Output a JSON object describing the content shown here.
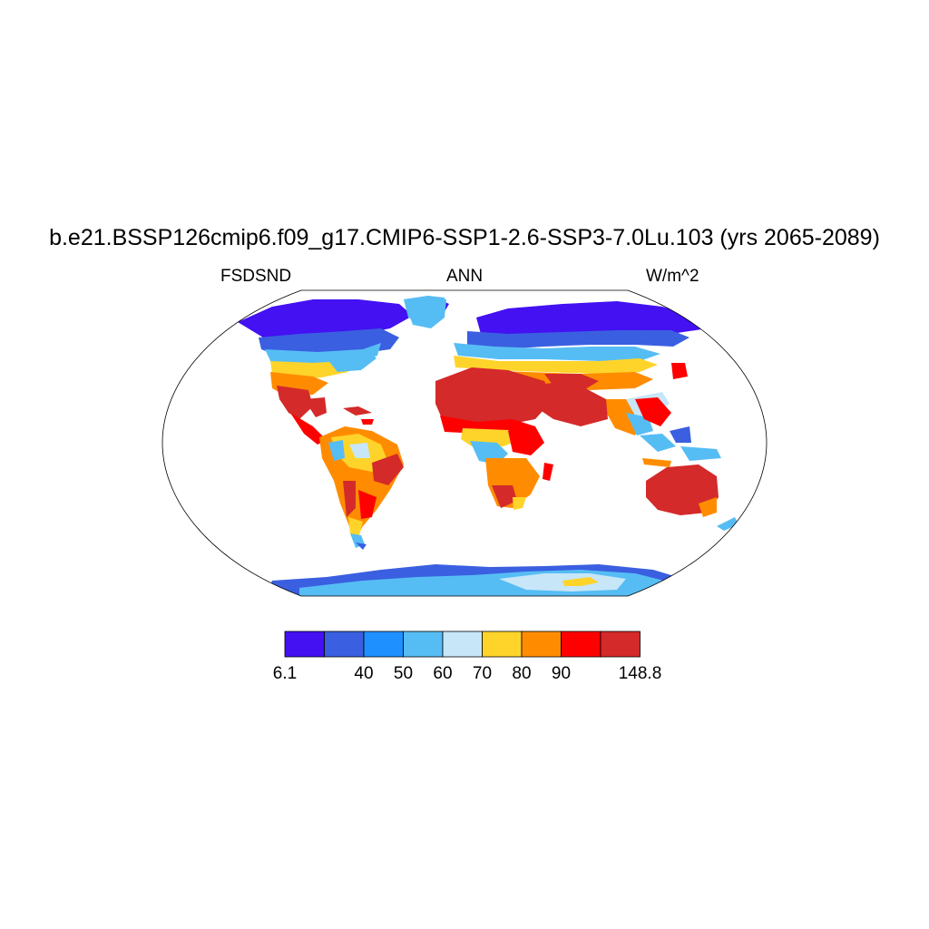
{
  "title": "b.e21.BSSP126cmip6.f09_g17.CMIP6-SSP1-2.6-SSP3-7.0Lu.103 (yrs 2065-2089)",
  "left_label": "FSDSND",
  "center_label": "ANN",
  "right_label": "W/m^2",
  "colorbar": {
    "colors": [
      "#4311f2",
      "#3a5fe0",
      "#1e90ff",
      "#56bdf4",
      "#c7e6f8",
      "#ffd42a",
      "#ff8c00",
      "#ff0000",
      "#d42a2a"
    ],
    "labels": [
      "6.1",
      "",
      "40",
      "50",
      "60",
      "70",
      "80",
      "90",
      "",
      "148.8"
    ]
  },
  "map": {
    "projection": "Robinson",
    "variable": "FSDSND",
    "season": "ANN",
    "units": "W/m^2"
  }
}
